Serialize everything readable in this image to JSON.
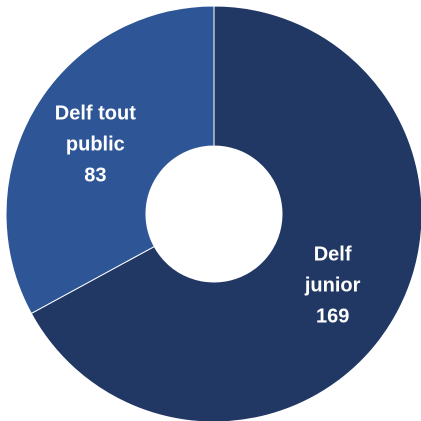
{
  "chart_data": {
    "type": "pie",
    "subtype": "donut",
    "title": "",
    "slices": [
      {
        "label_lines": [
          "Delf",
          "junior"
        ],
        "value": 169,
        "value_text": "169",
        "color": "#213864"
      },
      {
        "label_lines": [
          "Delf tout",
          "public"
        ],
        "value": 83,
        "value_text": "83",
        "color": "#2E5596"
      }
    ],
    "legend": "none",
    "background": "#ffffff",
    "hole_color": "#ffffff"
  }
}
